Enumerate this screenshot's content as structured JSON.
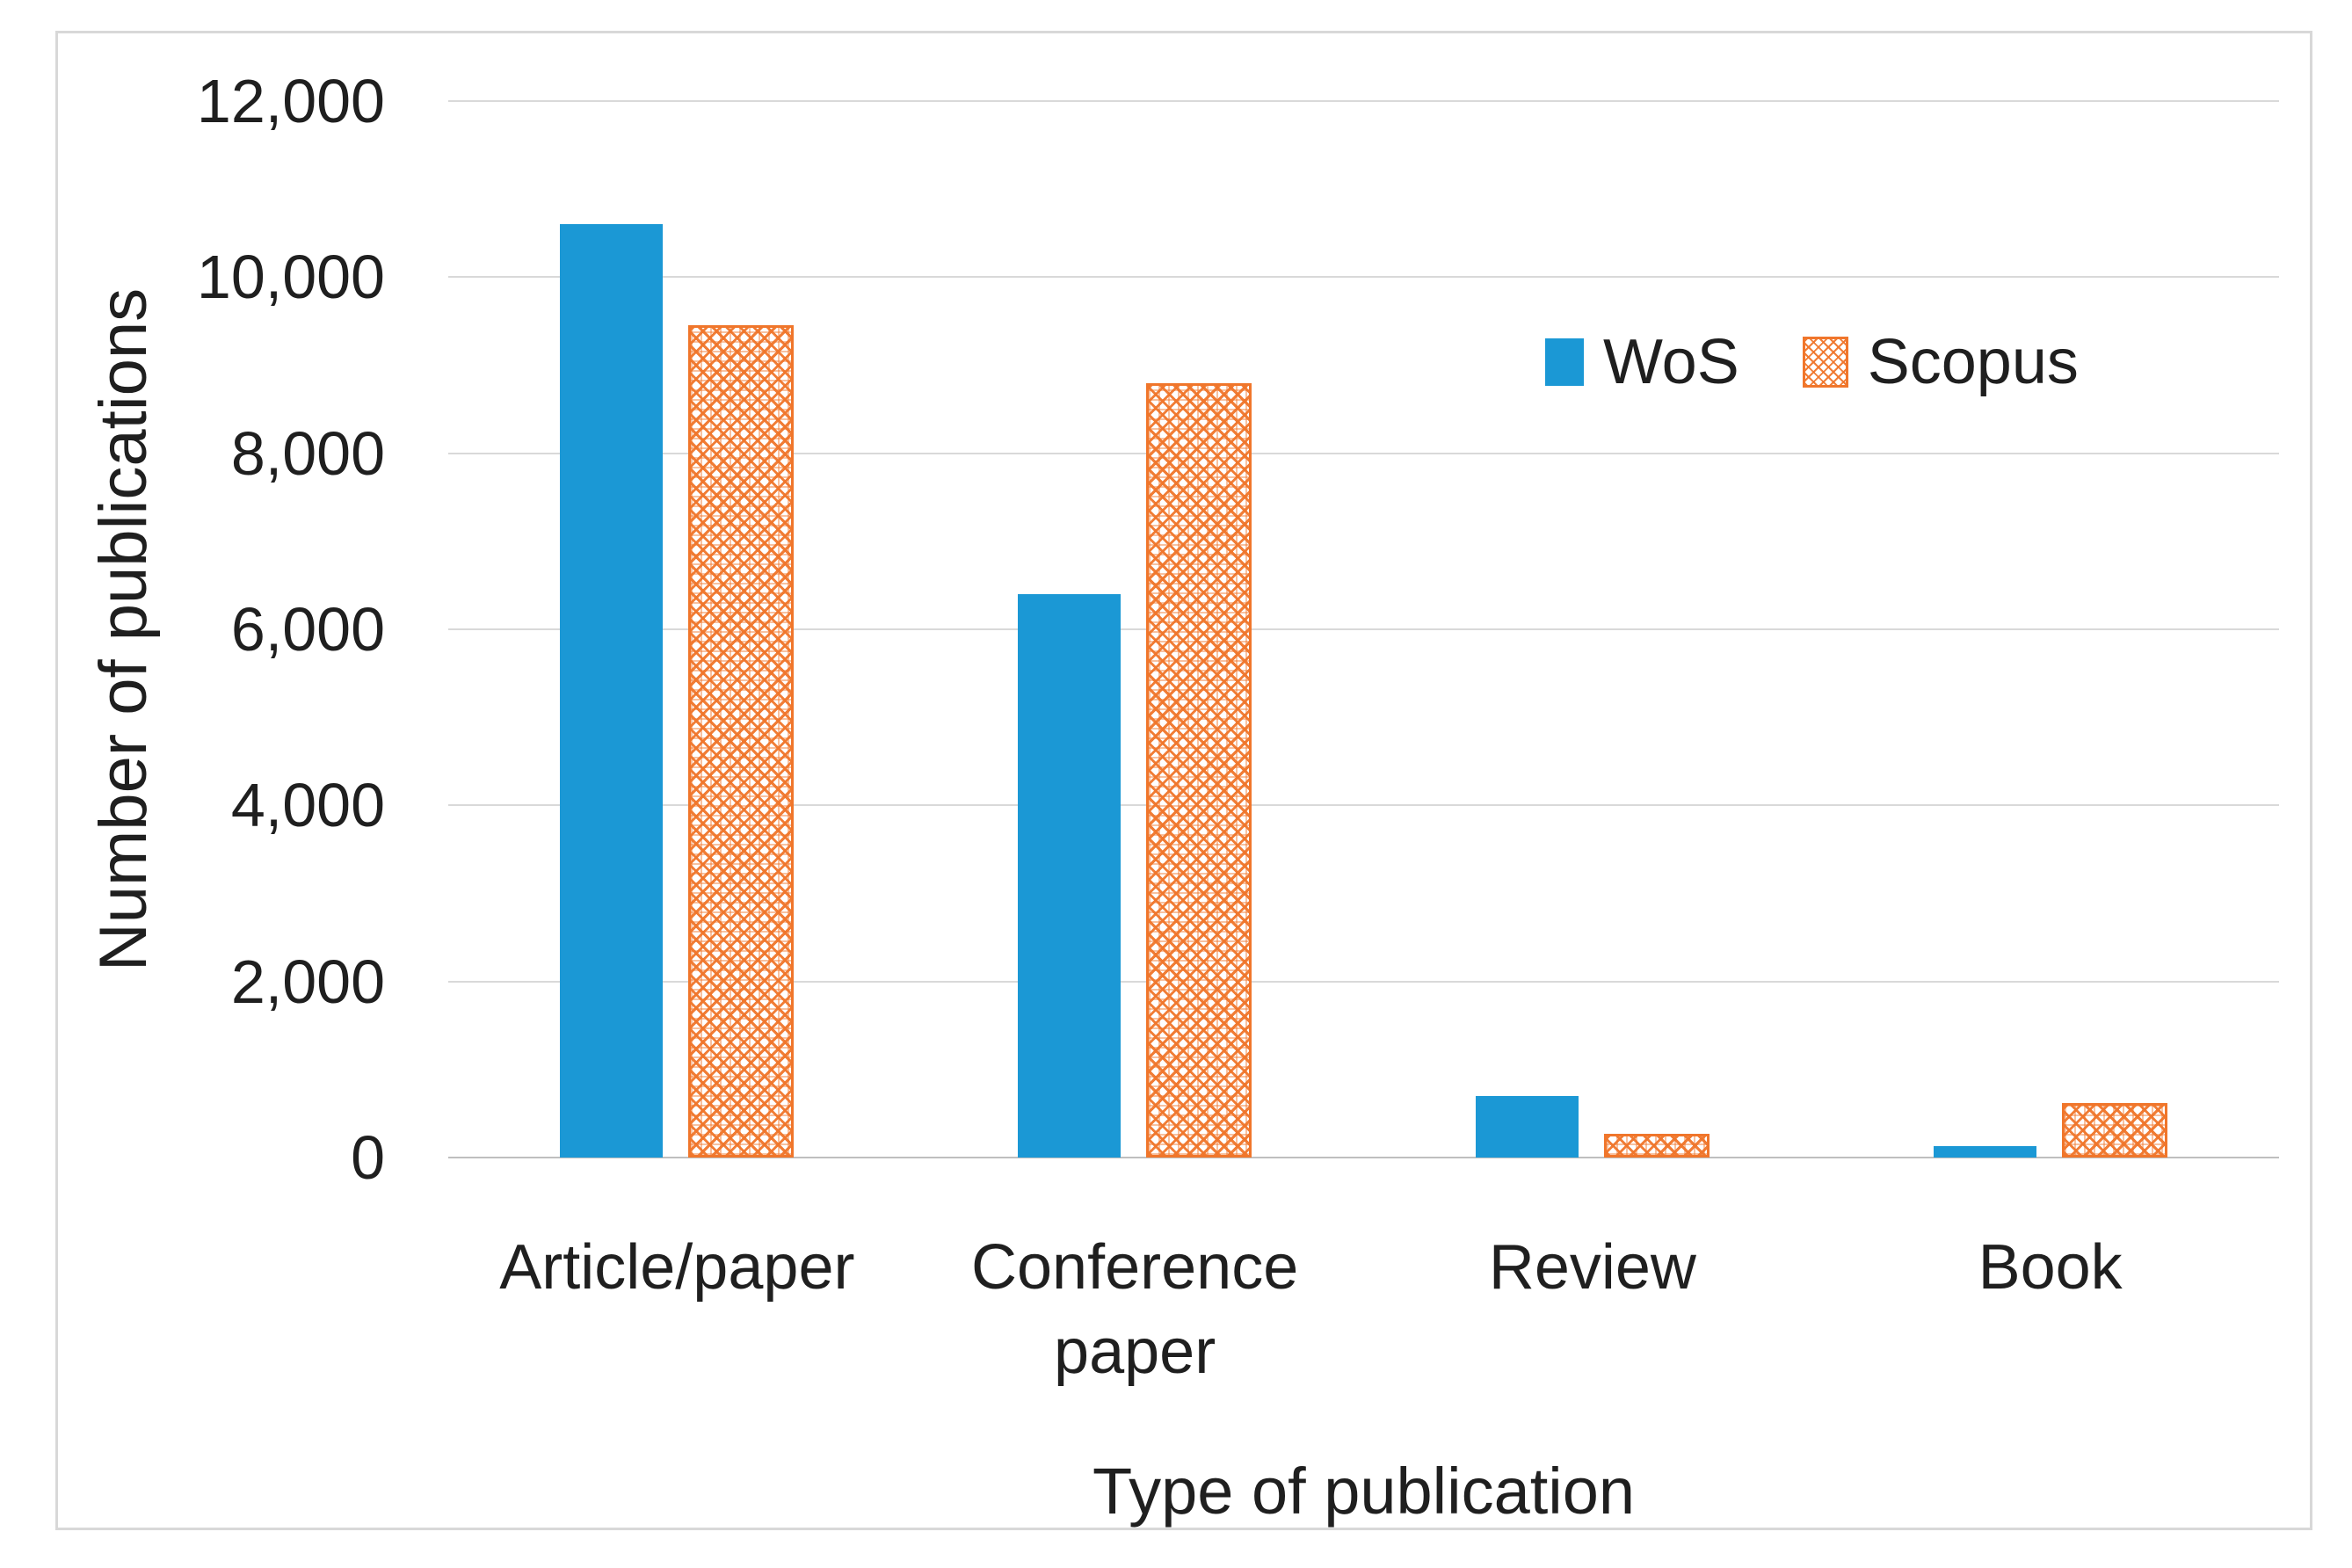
{
  "figure": {
    "background": "#FFFFFF",
    "border_color": "#D8D8D8",
    "gridline_color": "#D9D9D9",
    "axis_line_color": "#BFBFBF",
    "text_color": "#1F1F1F"
  },
  "chart_data": {
    "type": "bar",
    "title": "",
    "xlabel": "Type of publication",
    "ylabel": "Number of publications",
    "categories": [
      "Article/paper",
      "Conference paper",
      "Review",
      "Book"
    ],
    "series": [
      {
        "name": "WoS",
        "color": "#1B98D5",
        "fill_style": "solid",
        "values": [
          10600,
          6400,
          700,
          130
        ]
      },
      {
        "name": "Scopus",
        "color": "#F0762B",
        "fill_style": "crosshatch-pattern",
        "values": [
          9450,
          8800,
          270,
          620
        ]
      }
    ],
    "ylim": [
      0,
      12000
    ],
    "yticks": [
      0,
      2000,
      4000,
      6000,
      8000,
      10000,
      12000
    ],
    "ytick_labels": [
      "0",
      "2,000",
      "4,000",
      "6,000",
      "8,000",
      "10,000",
      "12,000"
    ],
    "grid": "horizontal",
    "legend_position": "inside-upper-right"
  }
}
